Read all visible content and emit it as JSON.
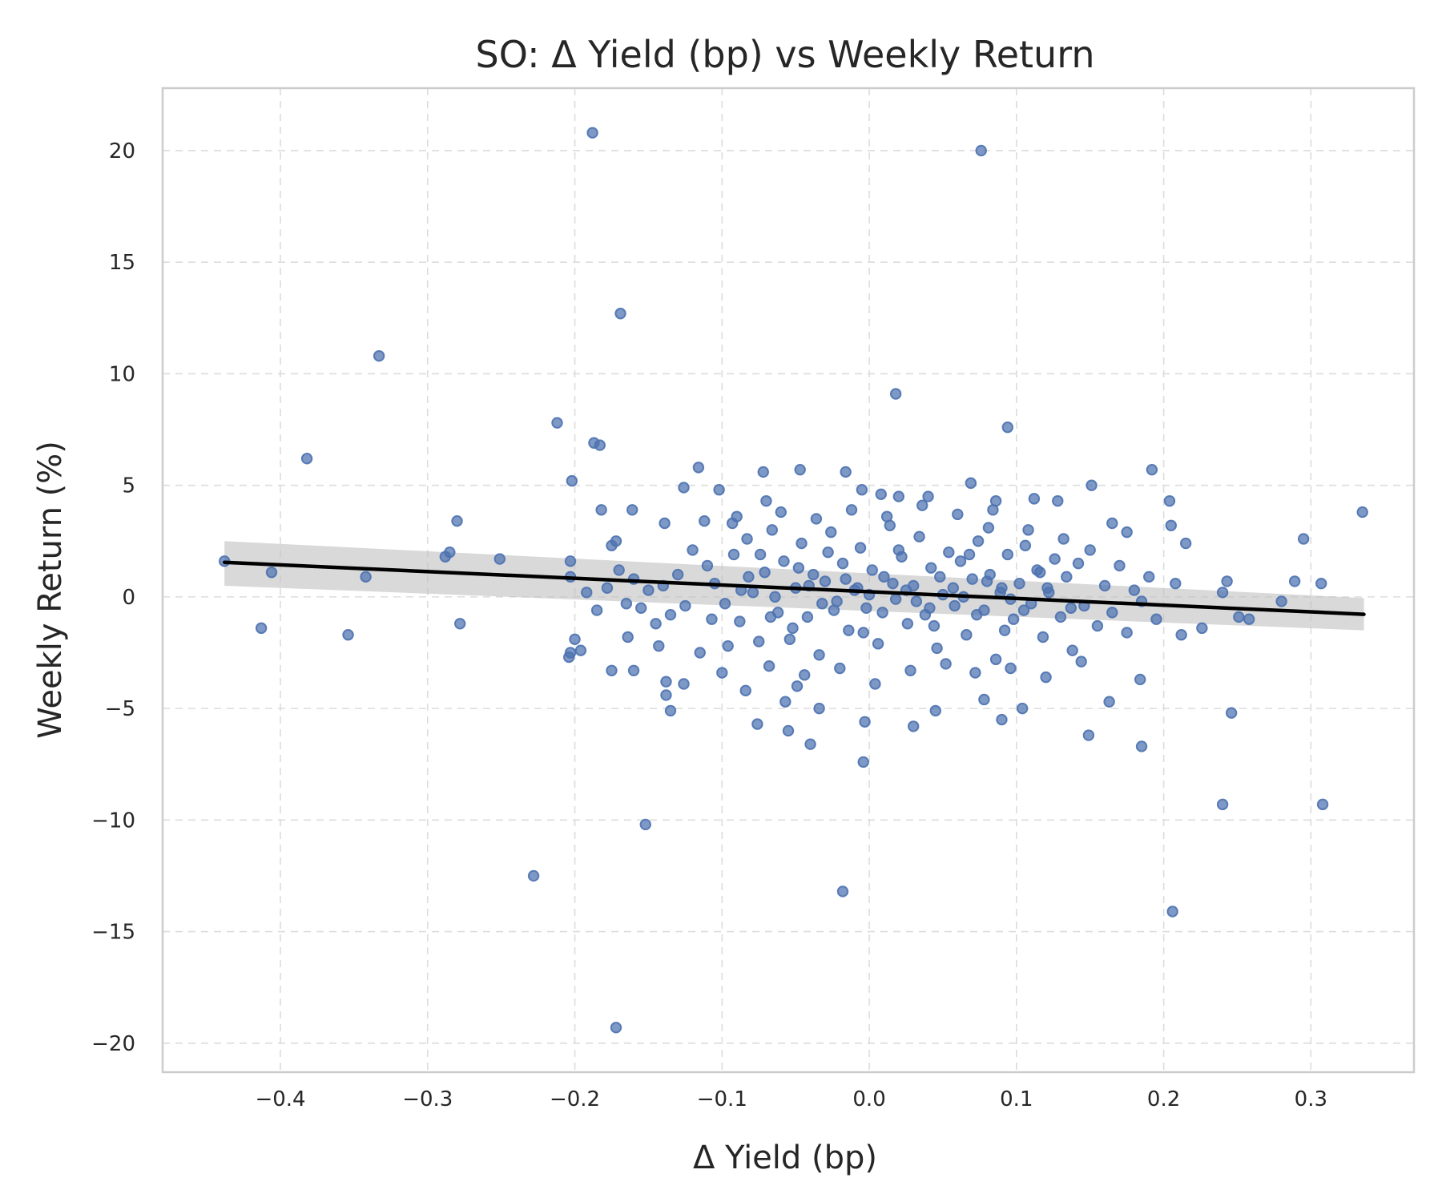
{
  "chart_data": {
    "type": "scatter",
    "title": "SO: Δ Yield (bp) vs Weekly Return",
    "xlabel": "Δ Yield (bp)",
    "ylabel": "Weekly Return (%)",
    "xlim": [
      -0.48,
      0.37
    ],
    "ylim": [
      -21.3,
      22.8
    ],
    "x_ticks": [
      -0.4,
      -0.3,
      -0.2,
      -0.1,
      0.0,
      0.1,
      0.2,
      0.3
    ],
    "x_tick_labels": [
      "−0.4",
      "−0.3",
      "−0.2",
      "−0.1",
      "0.0",
      "0.1",
      "0.2",
      "0.3"
    ],
    "y_ticks": [
      -20,
      -15,
      -10,
      -5,
      0,
      5,
      10,
      15,
      20
    ],
    "y_tick_labels": [
      "−20",
      "−15",
      "−10",
      "−5",
      "0",
      "5",
      "10",
      "15",
      "20"
    ],
    "grid": true,
    "colors": {
      "points": "#4c72b0",
      "regression_line": "#000000",
      "confidence_band": "#bfbfbf",
      "grid": "#dcdcdc",
      "frame": "#cccccc"
    },
    "regression": {
      "x": [
        -0.438,
        0.336
      ],
      "y": [
        1.55,
        -0.78
      ],
      "ci_lower": [
        0.5,
        -1.5
      ],
      "ci_upper": [
        2.5,
        -0.05
      ]
    },
    "points": [
      {
        "x": -0.188,
        "y": 20.8
      },
      {
        "x": 0.076,
        "y": 20.0
      },
      {
        "x": -0.169,
        "y": 12.7
      },
      {
        "x": -0.333,
        "y": 10.8
      },
      {
        "x": 0.018,
        "y": 9.1
      },
      {
        "x": -0.212,
        "y": 7.8
      },
      {
        "x": 0.094,
        "y": 7.6
      },
      {
        "x": -0.187,
        "y": 6.9
      },
      {
        "x": -0.183,
        "y": 6.8
      },
      {
        "x": -0.382,
        "y": 6.2
      },
      {
        "x": 0.192,
        "y": 5.7
      },
      {
        "x": -0.202,
        "y": 5.2
      },
      {
        "x": -0.116,
        "y": 5.8
      },
      {
        "x": -0.047,
        "y": 5.7
      },
      {
        "x": -0.016,
        "y": 5.6
      },
      {
        "x": 0.151,
        "y": 5.0
      },
      {
        "x": 0.069,
        "y": 5.1
      },
      {
        "x": -0.072,
        "y": 5.6
      },
      {
        "x": -0.102,
        "y": 4.8
      },
      {
        "x": -0.126,
        "y": 4.9
      },
      {
        "x": -0.005,
        "y": 4.8
      },
      {
        "x": 0.008,
        "y": 4.6
      },
      {
        "x": 0.02,
        "y": 4.5
      },
      {
        "x": 0.04,
        "y": 4.5
      },
      {
        "x": 0.086,
        "y": 4.3
      },
      {
        "x": 0.112,
        "y": 4.4
      },
      {
        "x": 0.128,
        "y": 4.3
      },
      {
        "x": 0.204,
        "y": 4.3
      },
      {
        "x": -0.161,
        "y": 3.9
      },
      {
        "x": -0.182,
        "y": 3.9
      },
      {
        "x": -0.28,
        "y": 3.4
      },
      {
        "x": -0.139,
        "y": 3.3
      },
      {
        "x": 0.165,
        "y": 3.3
      },
      {
        "x": 0.205,
        "y": 3.2
      },
      {
        "x": 0.175,
        "y": 2.9
      },
      {
        "x": -0.07,
        "y": 4.3
      },
      {
        "x": -0.093,
        "y": 3.3
      },
      {
        "x": 0.081,
        "y": 3.1
      },
      {
        "x": 0.335,
        "y": 3.8
      },
      {
        "x": 0.295,
        "y": 2.6
      },
      {
        "x": 0.215,
        "y": 2.4
      },
      {
        "x": -0.172,
        "y": 2.5
      },
      {
        "x": -0.175,
        "y": 2.3
      },
      {
        "x": -0.285,
        "y": 2.0
      },
      {
        "x": -0.288,
        "y": 1.8
      },
      {
        "x": -0.251,
        "y": 1.7
      },
      {
        "x": -0.203,
        "y": 1.6
      },
      {
        "x": -0.438,
        "y": 1.6
      },
      {
        "x": -0.406,
        "y": 1.1
      },
      {
        "x": -0.203,
        "y": 0.9
      },
      {
        "x": -0.342,
        "y": 0.9
      },
      {
        "x": 0.289,
        "y": 0.7
      },
      {
        "x": 0.307,
        "y": 0.6
      },
      {
        "x": 0.243,
        "y": 0.7
      },
      {
        "x": 0.208,
        "y": 0.6
      },
      {
        "x": 0.28,
        "y": -0.2
      },
      {
        "x": 0.24,
        "y": 0.2
      },
      {
        "x": 0.251,
        "y": -0.9
      },
      {
        "x": 0.258,
        "y": -1.0
      },
      {
        "x": -0.413,
        "y": -1.4
      },
      {
        "x": -0.354,
        "y": -1.7
      },
      {
        "x": -0.278,
        "y": -1.2
      },
      {
        "x": -0.2,
        "y": -1.9
      },
      {
        "x": -0.196,
        "y": -2.4
      },
      {
        "x": -0.204,
        "y": -2.7
      },
      {
        "x": -0.203,
        "y": -2.5
      },
      {
        "x": -0.164,
        "y": -1.8
      },
      {
        "x": -0.143,
        "y": -2.2
      },
      {
        "x": -0.175,
        "y": -3.3
      },
      {
        "x": -0.16,
        "y": -3.3
      },
      {
        "x": -0.138,
        "y": -3.8
      },
      {
        "x": -0.138,
        "y": -4.4
      },
      {
        "x": -0.135,
        "y": -5.1
      },
      {
        "x": -0.126,
        "y": -3.9
      },
      {
        "x": -0.1,
        "y": -3.4
      },
      {
        "x": -0.084,
        "y": -4.2
      },
      {
        "x": -0.076,
        "y": -5.7
      },
      {
        "x": -0.057,
        "y": -4.7
      },
      {
        "x": -0.049,
        "y": -4.0
      },
      {
        "x": -0.055,
        "y": -6.0
      },
      {
        "x": -0.034,
        "y": -5.0
      },
      {
        "x": -0.04,
        "y": -6.6
      },
      {
        "x": -0.004,
        "y": -7.4
      },
      {
        "x": -0.003,
        "y": -5.6
      },
      {
        "x": 0.03,
        "y": -5.8
      },
      {
        "x": 0.045,
        "y": -5.1
      },
      {
        "x": 0.09,
        "y": -5.5
      },
      {
        "x": 0.104,
        "y": -5.0
      },
      {
        "x": 0.078,
        "y": -4.6
      },
      {
        "x": 0.149,
        "y": -6.2
      },
      {
        "x": 0.185,
        "y": -6.7
      },
      {
        "x": 0.184,
        "y": -3.7
      },
      {
        "x": 0.163,
        "y": -4.7
      },
      {
        "x": 0.246,
        "y": -5.2
      },
      {
        "x": 0.226,
        "y": -1.4
      },
      {
        "x": 0.212,
        "y": -1.7
      },
      {
        "x": 0.24,
        "y": -9.3
      },
      {
        "x": 0.308,
        "y": -9.3
      },
      {
        "x": -0.152,
        "y": -10.2
      },
      {
        "x": -0.228,
        "y": -12.5
      },
      {
        "x": -0.018,
        "y": -13.2
      },
      {
        "x": 0.206,
        "y": -14.1
      },
      {
        "x": -0.172,
        "y": -19.3
      },
      {
        "x": -0.12,
        "y": 2.1
      },
      {
        "x": -0.11,
        "y": 1.4
      },
      {
        "x": -0.105,
        "y": 0.6
      },
      {
        "x": -0.098,
        "y": -0.3
      },
      {
        "x": -0.092,
        "y": 1.9
      },
      {
        "x": -0.088,
        "y": -1.1
      },
      {
        "x": -0.083,
        "y": 2.6
      },
      {
        "x": -0.079,
        "y": 0.2
      },
      {
        "x": -0.075,
        "y": -2.0
      },
      {
        "x": -0.071,
        "y": 1.1
      },
      {
        "x": -0.066,
        "y": 3.0
      },
      {
        "x": -0.062,
        "y": -0.7
      },
      {
        "x": -0.058,
        "y": 1.6
      },
      {
        "x": -0.054,
        "y": -1.9
      },
      {
        "x": -0.05,
        "y": 0.4
      },
      {
        "x": -0.046,
        "y": 2.4
      },
      {
        "x": -0.042,
        "y": -0.9
      },
      {
        "x": -0.038,
        "y": 1.0
      },
      {
        "x": -0.034,
        "y": -2.6
      },
      {
        "x": -0.03,
        "y": 0.7
      },
      {
        "x": -0.026,
        "y": 2.9
      },
      {
        "x": -0.022,
        "y": -0.2
      },
      {
        "x": -0.018,
        "y": 1.5
      },
      {
        "x": -0.014,
        "y": -1.5
      },
      {
        "x": -0.01,
        "y": 0.3
      },
      {
        "x": -0.006,
        "y": 2.2
      },
      {
        "x": -0.002,
        "y": -0.5
      },
      {
        "x": 0.002,
        "y": 1.2
      },
      {
        "x": 0.006,
        "y": -2.1
      },
      {
        "x": 0.01,
        "y": 0.9
      },
      {
        "x": 0.014,
        "y": 3.2
      },
      {
        "x": 0.018,
        "y": -0.1
      },
      {
        "x": 0.022,
        "y": 1.8
      },
      {
        "x": 0.026,
        "y": -1.2
      },
      {
        "x": 0.03,
        "y": 0.5
      },
      {
        "x": 0.034,
        "y": 2.7
      },
      {
        "x": 0.038,
        "y": -0.8
      },
      {
        "x": 0.042,
        "y": 1.3
      },
      {
        "x": 0.046,
        "y": -2.3
      },
      {
        "x": 0.05,
        "y": 0.1
      },
      {
        "x": 0.054,
        "y": 2.0
      },
      {
        "x": 0.058,
        "y": -0.4
      },
      {
        "x": 0.062,
        "y": 1.6
      },
      {
        "x": 0.066,
        "y": -1.7
      },
      {
        "x": 0.07,
        "y": 0.8
      },
      {
        "x": 0.074,
        "y": 2.5
      },
      {
        "x": 0.078,
        "y": -0.6
      },
      {
        "x": 0.082,
        "y": 1.0
      },
      {
        "x": 0.086,
        "y": -2.8
      },
      {
        "x": 0.09,
        "y": 0.4
      },
      {
        "x": 0.094,
        "y": 1.9
      },
      {
        "x": 0.098,
        "y": -1.0
      },
      {
        "x": 0.102,
        "y": 0.6
      },
      {
        "x": 0.106,
        "y": 2.3
      },
      {
        "x": 0.11,
        "y": -0.3
      },
      {
        "x": 0.114,
        "y": 1.2
      },
      {
        "x": 0.118,
        "y": -1.8
      },
      {
        "x": 0.122,
        "y": 0.2
      },
      {
        "x": 0.126,
        "y": 1.7
      },
      {
        "x": 0.13,
        "y": -0.9
      },
      {
        "x": 0.134,
        "y": 0.9
      },
      {
        "x": 0.138,
        "y": -2.4
      },
      {
        "x": 0.142,
        "y": 1.5
      },
      {
        "x": 0.146,
        "y": -0.4
      },
      {
        "x": 0.15,
        "y": 2.1
      },
      {
        "x": 0.155,
        "y": -1.3
      },
      {
        "x": 0.16,
        "y": 0.5
      },
      {
        "x": 0.165,
        "y": -0.7
      },
      {
        "x": 0.17,
        "y": 1.4
      },
      {
        "x": 0.175,
        "y": -1.6
      },
      {
        "x": 0.18,
        "y": 0.3
      },
      {
        "x": 0.185,
        "y": -0.2
      },
      {
        "x": 0.19,
        "y": 0.9
      },
      {
        "x": 0.195,
        "y": -1.0
      },
      {
        "x": -0.125,
        "y": -0.4
      },
      {
        "x": -0.13,
        "y": 1.0
      },
      {
        "x": -0.135,
        "y": -0.8
      },
      {
        "x": -0.14,
        "y": 0.5
      },
      {
        "x": -0.145,
        "y": -1.2
      },
      {
        "x": -0.15,
        "y": 0.3
      },
      {
        "x": -0.155,
        "y": -0.5
      },
      {
        "x": -0.16,
        "y": 0.8
      },
      {
        "x": -0.165,
        "y": -0.3
      },
      {
        "x": -0.17,
        "y": 1.2
      },
      {
        "x": -0.178,
        "y": 0.4
      },
      {
        "x": -0.185,
        "y": -0.6
      },
      {
        "x": -0.192,
        "y": 0.2
      },
      {
        "x": -0.115,
        "y": -2.5
      },
      {
        "x": -0.112,
        "y": 3.4
      },
      {
        "x": -0.096,
        "y": -2.2
      },
      {
        "x": -0.09,
        "y": 3.6
      },
      {
        "x": -0.068,
        "y": -3.1
      },
      {
        "x": -0.06,
        "y": 3.8
      },
      {
        "x": -0.044,
        "y": -3.5
      },
      {
        "x": -0.036,
        "y": 3.5
      },
      {
        "x": -0.02,
        "y": -3.2
      },
      {
        "x": -0.012,
        "y": 3.9
      },
      {
        "x": 0.004,
        "y": -3.9
      },
      {
        "x": 0.012,
        "y": 3.6
      },
      {
        "x": 0.028,
        "y": -3.3
      },
      {
        "x": 0.036,
        "y": 4.1
      },
      {
        "x": 0.052,
        "y": -3.0
      },
      {
        "x": 0.06,
        "y": 3.7
      },
      {
        "x": 0.072,
        "y": -3.4
      },
      {
        "x": 0.084,
        "y": 3.9
      },
      {
        "x": 0.096,
        "y": -3.2
      },
      {
        "x": 0.108,
        "y": 3.0
      },
      {
        "x": 0.12,
        "y": -3.6
      },
      {
        "x": 0.132,
        "y": 2.6
      },
      {
        "x": 0.144,
        "y": -2.9
      },
      {
        "x": -0.082,
        "y": 0.9
      },
      {
        "x": -0.064,
        "y": 0.0
      },
      {
        "x": -0.048,
        "y": 1.3
      },
      {
        "x": -0.032,
        "y": -0.3
      },
      {
        "x": -0.016,
        "y": 0.8
      },
      {
        "x": 0.0,
        "y": 0.1
      },
      {
        "x": 0.016,
        "y": 0.6
      },
      {
        "x": 0.032,
        "y": -0.2
      },
      {
        "x": 0.048,
        "y": 0.9
      },
      {
        "x": 0.064,
        "y": 0.0
      },
      {
        "x": 0.08,
        "y": 0.7
      },
      {
        "x": 0.096,
        "y": -0.1
      },
      {
        "x": -0.074,
        "y": 1.9
      },
      {
        "x": -0.052,
        "y": -1.4
      },
      {
        "x": -0.028,
        "y": 2.0
      },
      {
        "x": -0.004,
        "y": -1.6
      },
      {
        "x": 0.02,
        "y": 2.1
      },
      {
        "x": 0.044,
        "y": -1.3
      },
      {
        "x": 0.068,
        "y": 1.9
      },
      {
        "x": 0.092,
        "y": -1.5
      },
      {
        "x": 0.116,
        "y": 1.1
      },
      {
        "x": -0.107,
        "y": -1.0
      },
      {
        "x": -0.087,
        "y": 0.3
      },
      {
        "x": -0.067,
        "y": -0.9
      },
      {
        "x": -0.041,
        "y": 0.5
      },
      {
        "x": -0.024,
        "y": -0.6
      },
      {
        "x": -0.008,
        "y": 0.4
      },
      {
        "x": 0.009,
        "y": -0.7
      },
      {
        "x": 0.025,
        "y": 0.3
      },
      {
        "x": 0.041,
        "y": -0.5
      },
      {
        "x": 0.057,
        "y": 0.4
      },
      {
        "x": 0.073,
        "y": -0.8
      },
      {
        "x": 0.089,
        "y": 0.2
      },
      {
        "x": 0.105,
        "y": -0.6
      },
      {
        "x": 0.121,
        "y": 0.4
      },
      {
        "x": 0.137,
        "y": -0.5
      }
    ]
  }
}
